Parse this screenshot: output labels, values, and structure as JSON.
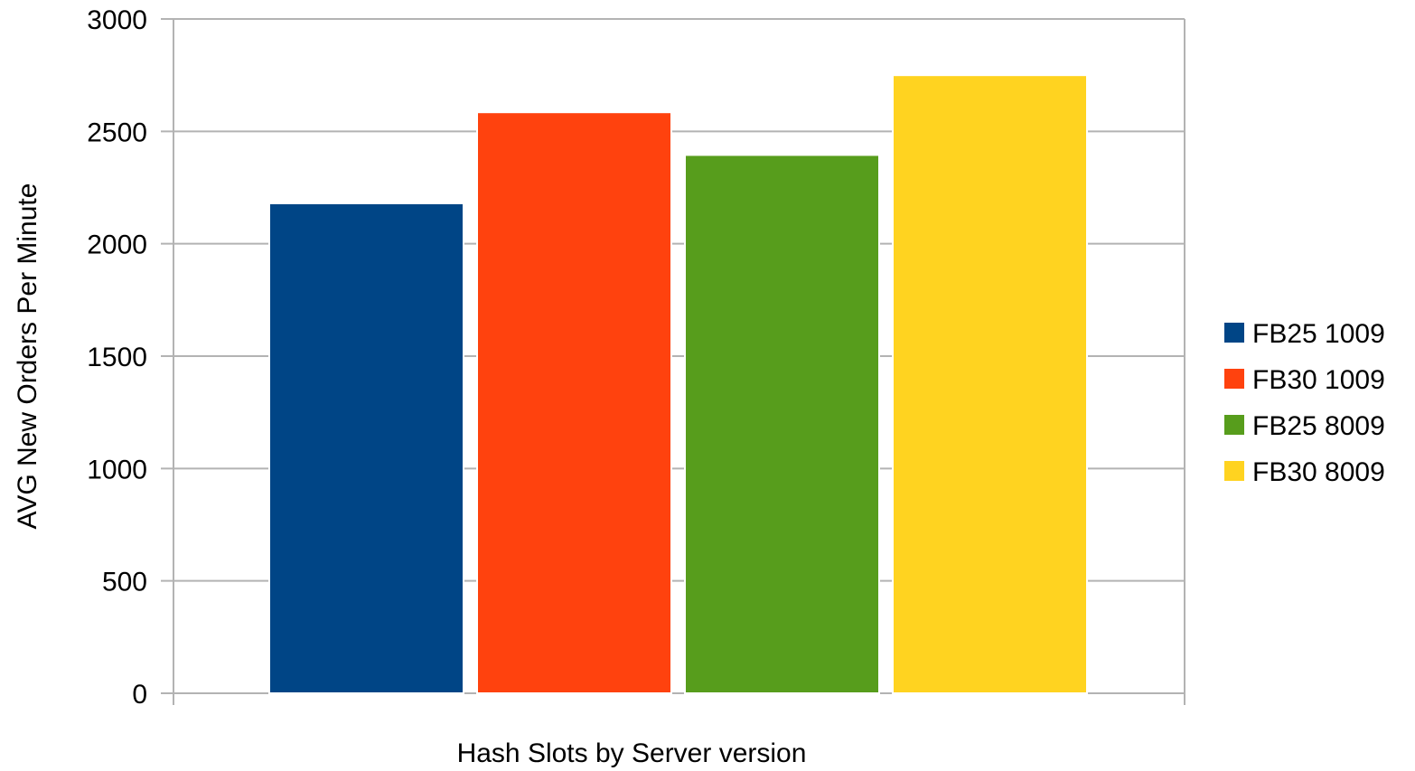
{
  "chart_data": {
    "type": "bar",
    "title": "",
    "xlabel": "Hash Slots by Server version",
    "ylabel": "AVG New Orders Per Minute",
    "ylim": [
      0,
      3000
    ],
    "yticks": [
      0,
      500,
      1000,
      1500,
      2000,
      2500,
      3000
    ],
    "grid": true,
    "legend_position": "right",
    "categories": [
      ""
    ],
    "series": [
      {
        "name": "FB25 1009",
        "values": [
          2180
        ],
        "color": "#004586"
      },
      {
        "name": "FB30 1009",
        "values": [
          2585
        ],
        "color": "#ff420e"
      },
      {
        "name": "FB25 8009",
        "values": [
          2395
        ],
        "color": "#579d1c"
      },
      {
        "name": "FB30 8009",
        "values": [
          2750
        ],
        "color": "#ffd320"
      }
    ]
  }
}
